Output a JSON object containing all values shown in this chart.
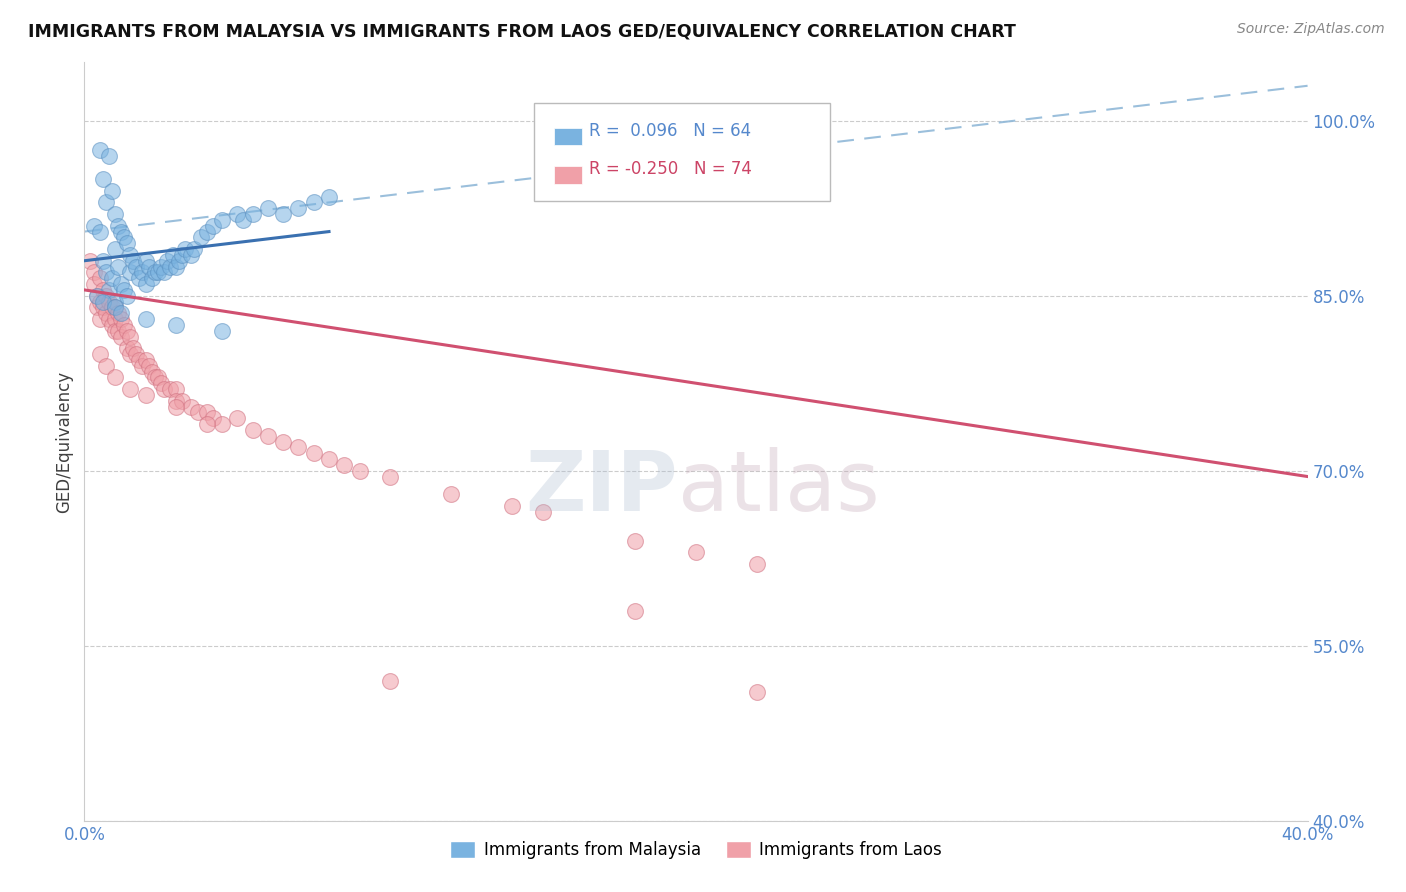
{
  "title": "IMMIGRANTS FROM MALAYSIA VS IMMIGRANTS FROM LAOS GED/EQUIVALENCY CORRELATION CHART",
  "source": "Source: ZipAtlas.com",
  "ylabel_label": "GED/Equivalency",
  "xlim": [
    0.0,
    40.0
  ],
  "ylim": [
    40.0,
    105.0
  ],
  "y_ticks": [
    40.0,
    55.0,
    70.0,
    85.0,
    100.0
  ],
  "y_tick_labels": [
    "40.0%",
    "55.0%",
    "70.0%",
    "85.0%",
    "100.0%"
  ],
  "malaysia_color": "#7ab3e0",
  "malaysia_edge_color": "#5a8fc0",
  "laos_color": "#f0a0a8",
  "laos_edge_color": "#d07080",
  "malaysia_line_color": "#3a70b0",
  "laos_line_color": "#d05070",
  "conf_line_color": "#90b8d8",
  "malaysia_R": 0.096,
  "malaysia_N": 64,
  "laos_R": -0.25,
  "laos_N": 74,
  "legend_malaysia": "Immigrants from Malaysia",
  "legend_laos": "Immigrants from Laos",
  "malaysia_scatter_x": [
    0.3,
    0.5,
    0.5,
    0.6,
    0.6,
    0.7,
    0.7,
    0.8,
    0.8,
    0.9,
    0.9,
    1.0,
    1.0,
    1.0,
    1.1,
    1.1,
    1.2,
    1.2,
    1.3,
    1.3,
    1.4,
    1.4,
    1.5,
    1.5,
    1.6,
    1.7,
    1.8,
    1.9,
    2.0,
    2.0,
    2.1,
    2.2,
    2.3,
    2.4,
    2.5,
    2.6,
    2.7,
    2.8,
    2.9,
    3.0,
    3.1,
    3.2,
    3.3,
    3.5,
    3.6,
    3.8,
    4.0,
    4.2,
    4.5,
    5.0,
    5.2,
    5.5,
    6.0,
    6.5,
    7.0,
    7.5,
    8.0,
    0.4,
    0.6,
    1.0,
    1.2,
    2.0,
    3.0,
    4.5
  ],
  "malaysia_scatter_y": [
    91.0,
    97.5,
    90.5,
    95.0,
    88.0,
    93.0,
    87.0,
    97.0,
    85.5,
    94.0,
    86.5,
    92.0,
    89.0,
    84.5,
    91.0,
    87.5,
    90.5,
    86.0,
    90.0,
    85.5,
    89.5,
    85.0,
    88.5,
    87.0,
    88.0,
    87.5,
    86.5,
    87.0,
    88.0,
    86.0,
    87.5,
    86.5,
    87.0,
    87.0,
    87.5,
    87.0,
    88.0,
    87.5,
    88.5,
    87.5,
    88.0,
    88.5,
    89.0,
    88.5,
    89.0,
    90.0,
    90.5,
    91.0,
    91.5,
    92.0,
    91.5,
    92.0,
    92.5,
    92.0,
    92.5,
    93.0,
    93.5,
    85.0,
    84.5,
    84.0,
    83.5,
    83.0,
    82.5,
    82.0
  ],
  "laos_scatter_x": [
    0.2,
    0.3,
    0.3,
    0.4,
    0.4,
    0.5,
    0.5,
    0.5,
    0.6,
    0.6,
    0.7,
    0.7,
    0.8,
    0.8,
    0.9,
    0.9,
    1.0,
    1.0,
    1.0,
    1.1,
    1.1,
    1.2,
    1.2,
    1.3,
    1.4,
    1.4,
    1.5,
    1.5,
    1.6,
    1.7,
    1.8,
    1.9,
    2.0,
    2.1,
    2.2,
    2.3,
    2.4,
    2.5,
    2.6,
    2.8,
    3.0,
    3.0,
    3.2,
    3.5,
    3.7,
    4.0,
    4.2,
    4.5,
    5.0,
    5.5,
    6.0,
    6.5,
    7.0,
    7.5,
    8.0,
    8.5,
    9.0,
    10.0,
    12.0,
    14.0,
    15.0,
    18.0,
    20.0,
    22.0,
    0.5,
    0.7,
    1.0,
    1.5,
    2.0,
    3.0,
    4.0,
    22.0,
    18.0,
    10.0
  ],
  "laos_scatter_y": [
    88.0,
    87.0,
    86.0,
    85.0,
    84.0,
    86.5,
    84.5,
    83.0,
    85.5,
    84.0,
    85.0,
    83.5,
    84.5,
    83.0,
    84.0,
    82.5,
    84.0,
    83.0,
    82.0,
    83.5,
    82.0,
    83.0,
    81.5,
    82.5,
    82.0,
    80.5,
    81.5,
    80.0,
    80.5,
    80.0,
    79.5,
    79.0,
    79.5,
    79.0,
    78.5,
    78.0,
    78.0,
    77.5,
    77.0,
    77.0,
    77.0,
    76.0,
    76.0,
    75.5,
    75.0,
    75.0,
    74.5,
    74.0,
    74.5,
    73.5,
    73.0,
    72.5,
    72.0,
    71.5,
    71.0,
    70.5,
    70.0,
    69.5,
    68.0,
    67.0,
    66.5,
    64.0,
    63.0,
    62.0,
    80.0,
    79.0,
    78.0,
    77.0,
    76.5,
    75.5,
    74.0,
    51.0,
    58.0,
    52.0
  ],
  "background_color": "#ffffff",
  "tick_color": "#5588cc",
  "watermark_zip_color": "#aabbd0",
  "watermark_atlas_color": "#c0a0b0"
}
